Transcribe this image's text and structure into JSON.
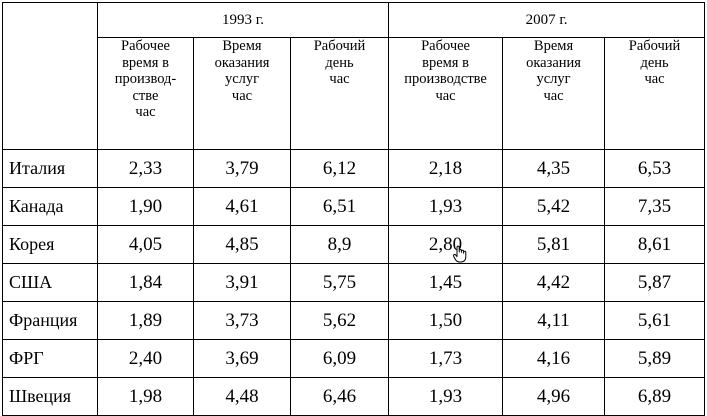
{
  "groups": [
    {
      "label": "1993 г."
    },
    {
      "label": "2007 г."
    }
  ],
  "subheaders": [
    "Рабочее\nвремя в\nпроизвод-\nстве\nчас",
    "Время\nоказания\nуслуг\nчас",
    "Рабочий\nдень\nчас",
    "Рабочее\nвремя в\nпроизводстве\nчас",
    "Время\nоказания\nуслуг\nчас",
    "Рабочий\nдень\nчас"
  ],
  "rows": [
    {
      "country": "Италия",
      "values": [
        "2,33",
        "3,79",
        "6,12",
        "2,18",
        "4,35",
        "6,53"
      ]
    },
    {
      "country": "Канада",
      "values": [
        "1,90",
        "4,61",
        "6,51",
        "1,93",
        "5,42",
        "7,35"
      ]
    },
    {
      "country": "Корея",
      "values": [
        "4,05",
        "4,85",
        "8,9",
        "2,80",
        "5,81",
        "8,61"
      ]
    },
    {
      "country": "США",
      "values": [
        "1,84",
        "3,91",
        "5,75",
        "1,45",
        "4,42",
        "5,87"
      ]
    },
    {
      "country": "Франция",
      "values": [
        "1,89",
        "3,73",
        "5,62",
        "1,50",
        "4,11",
        "5,61"
      ]
    },
    {
      "country": "ФРГ",
      "values": [
        "2,40",
        "3,69",
        "6,09",
        "1,73",
        "4,16",
        "5,89"
      ]
    },
    {
      "country": "Швеция",
      "values": [
        "1,98",
        "4,48",
        "6,46",
        "1,93",
        "4,96",
        "6,89"
      ]
    }
  ],
  "cursor": {
    "icon": "hand-pointer-icon"
  }
}
